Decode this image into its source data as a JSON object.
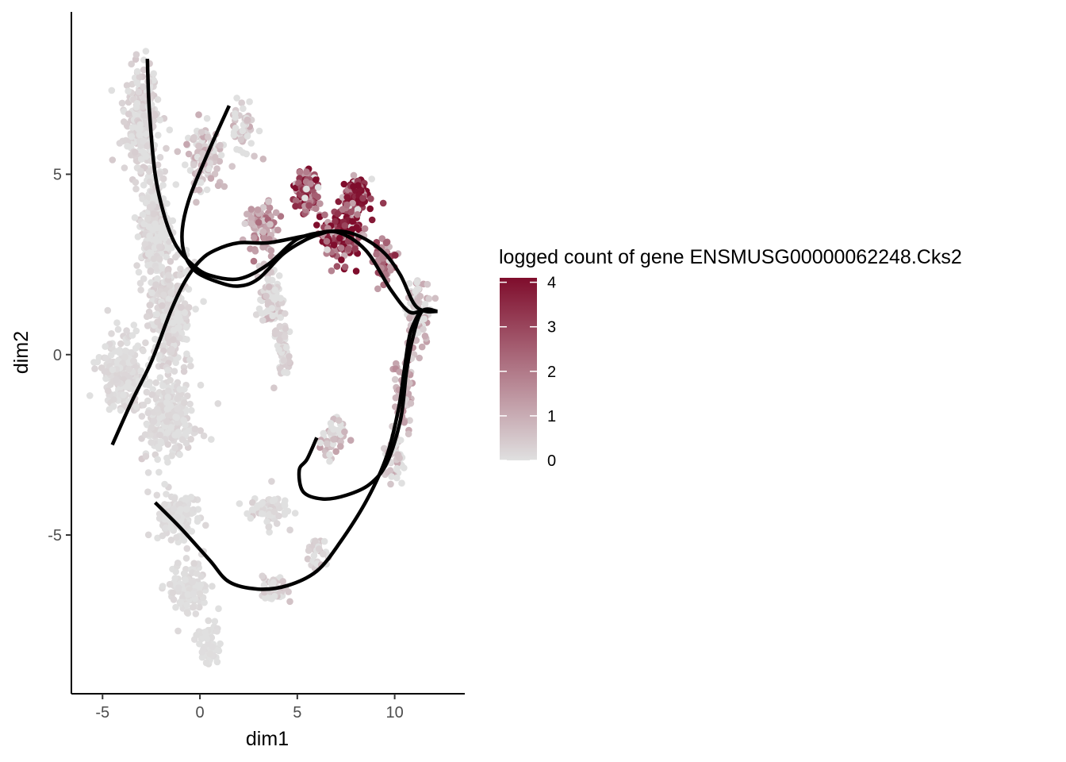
{
  "chart_data": {
    "type": "scatter",
    "title": "",
    "xlabel": "dim1",
    "ylabel": "dim2",
    "xlim": [
      -6.6,
      13.6
    ],
    "ylim": [
      -9.4,
      9.5
    ],
    "x_ticks": [
      -5,
      0,
      5,
      10
    ],
    "y_ticks": [
      -5,
      0,
      5
    ],
    "x_tick_labels": [
      "-5",
      "0",
      "5",
      "10"
    ],
    "y_tick_labels": [
      "-5",
      "0",
      "5"
    ],
    "grid": false,
    "color_scale": {
      "title": "logged count of gene ENSMUSG00000062248.Cks2",
      "min": 0,
      "max": 4.1,
      "ticks": [
        0,
        1,
        2,
        3,
        4
      ],
      "tick_labels": [
        "0",
        "1",
        "2",
        "3",
        "4"
      ],
      "low_color": "#e0e0e0",
      "high_color": "#7f0d2c",
      "legend_position": "right"
    },
    "point_regions": [
      {
        "center": [
          -3.0,
          6.5
        ],
        "spread": [
          0.8,
          1.3
        ],
        "n": 260,
        "expr": 0.25
      },
      {
        "center": [
          -2.3,
          3.5
        ],
        "spread": [
          0.8,
          1.5
        ],
        "n": 260,
        "expr": 0.2
      },
      {
        "center": [
          -1.5,
          1.0
        ],
        "spread": [
          0.9,
          1.5
        ],
        "n": 300,
        "expr": 0.2
      },
      {
        "center": [
          -4.0,
          -0.5
        ],
        "spread": [
          1.0,
          1.0
        ],
        "n": 220,
        "expr": 0.15
      },
      {
        "center": [
          -1.6,
          -1.8
        ],
        "spread": [
          1.2,
          1.0
        ],
        "n": 260,
        "expr": 0.15
      },
      {
        "center": [
          0.2,
          5.5
        ],
        "spread": [
          0.8,
          0.9
        ],
        "n": 110,
        "expr": 0.6
      },
      {
        "center": [
          2.2,
          6.3
        ],
        "spread": [
          0.6,
          0.7
        ],
        "n": 50,
        "expr": 0.5
      },
      {
        "center": [
          3.2,
          3.5
        ],
        "spread": [
          0.7,
          0.7
        ],
        "n": 90,
        "expr": 1.3
      },
      {
        "center": [
          3.6,
          1.6
        ],
        "spread": [
          0.5,
          0.7
        ],
        "n": 80,
        "expr": 0.5
      },
      {
        "center": [
          4.3,
          0.3
        ],
        "spread": [
          0.4,
          0.8
        ],
        "n": 60,
        "expr": 0.3
      },
      {
        "center": [
          5.5,
          4.5
        ],
        "spread": [
          0.6,
          0.5
        ],
        "n": 110,
        "expr": 2.6
      },
      {
        "center": [
          8.0,
          4.4
        ],
        "spread": [
          0.6,
          0.4
        ],
        "n": 130,
        "expr": 3.3
      },
      {
        "center": [
          7.2,
          3.3
        ],
        "spread": [
          0.9,
          0.7
        ],
        "n": 150,
        "expr": 3.0
      },
      {
        "center": [
          9.5,
          2.6
        ],
        "spread": [
          0.5,
          0.6
        ],
        "n": 50,
        "expr": 1.9
      },
      {
        "center": [
          11.2,
          1.2
        ],
        "spread": [
          0.6,
          0.8
        ],
        "n": 90,
        "expr": 0.8
      },
      {
        "center": [
          10.5,
          -1.0
        ],
        "spread": [
          0.4,
          1.0
        ],
        "n": 70,
        "expr": 1.0
      },
      {
        "center": [
          10.0,
          -2.8
        ],
        "spread": [
          0.5,
          0.7
        ],
        "n": 50,
        "expr": 0.6
      },
      {
        "center": [
          6.8,
          -2.3
        ],
        "spread": [
          0.6,
          0.5
        ],
        "n": 50,
        "expr": 0.6
      },
      {
        "center": [
          -1.0,
          -4.5
        ],
        "spread": [
          0.9,
          0.6
        ],
        "n": 150,
        "expr": 0.1
      },
      {
        "center": [
          -0.6,
          -6.5
        ],
        "spread": [
          0.9,
          0.7
        ],
        "n": 120,
        "expr": 0.1
      },
      {
        "center": [
          0.4,
          -8.0
        ],
        "spread": [
          0.5,
          0.6
        ],
        "n": 60,
        "expr": 0.05
      },
      {
        "center": [
          3.5,
          -4.3
        ],
        "spread": [
          0.9,
          0.4
        ],
        "n": 80,
        "expr": 0.2
      },
      {
        "center": [
          3.7,
          -6.5
        ],
        "spread": [
          0.7,
          0.3
        ],
        "n": 60,
        "expr": 0.3
      },
      {
        "center": [
          6.0,
          -5.5
        ],
        "spread": [
          0.5,
          0.4
        ],
        "n": 30,
        "expr": 0.3
      }
    ],
    "trajectories": [
      {
        "points": [
          [
            -2.7,
            8.2
          ],
          [
            -2.6,
            6.8
          ],
          [
            -2.3,
            5.0
          ],
          [
            -1.8,
            3.8
          ],
          [
            -1.2,
            3.0
          ],
          [
            -0.4,
            2.5
          ],
          [
            0.5,
            2.2
          ],
          [
            2.0,
            2.1
          ],
          [
            3.5,
            2.5
          ],
          [
            5.0,
            3.2
          ],
          [
            6.5,
            3.4
          ],
          [
            7.5,
            3.4
          ],
          [
            8.5,
            3.2
          ],
          [
            9.5,
            2.8
          ],
          [
            10.3,
            2.2
          ],
          [
            11.0,
            1.4
          ],
          [
            11.6,
            1.2
          ],
          [
            12.2,
            1.2
          ]
        ]
      },
      {
        "points": [
          [
            1.5,
            6.9
          ],
          [
            0.5,
            5.7
          ],
          [
            -0.5,
            4.4
          ],
          [
            -0.9,
            3.5
          ],
          [
            -0.8,
            2.8
          ],
          [
            -0.2,
            2.3
          ],
          [
            1.0,
            2.0
          ],
          [
            2.0,
            1.9
          ],
          [
            3.0,
            2.1
          ],
          [
            4.3,
            2.8
          ],
          [
            5.5,
            3.2
          ],
          [
            6.5,
            3.4
          ]
        ]
      },
      {
        "points": [
          [
            -4.5,
            -2.5
          ],
          [
            -3.5,
            -1.3
          ],
          [
            -2.5,
            -0.2
          ],
          [
            -1.5,
            1.2
          ],
          [
            -0.8,
            2.0
          ],
          [
            0.0,
            2.6
          ],
          [
            0.8,
            2.9
          ],
          [
            2.0,
            3.1
          ],
          [
            3.5,
            3.1
          ],
          [
            5.5,
            3.3
          ],
          [
            7.0,
            3.4
          ],
          [
            8.5,
            2.9
          ],
          [
            9.8,
            1.8
          ],
          [
            10.7,
            1.2
          ],
          [
            11.3,
            1.2
          ]
        ]
      },
      {
        "points": [
          [
            12.2,
            1.2
          ],
          [
            11.4,
            1.2
          ],
          [
            10.9,
            0.4
          ],
          [
            10.6,
            -0.5
          ],
          [
            10.3,
            -1.8
          ],
          [
            9.6,
            -3.0
          ],
          [
            8.7,
            -3.6
          ],
          [
            7.5,
            -3.9
          ],
          [
            6.3,
            -4.0
          ],
          [
            5.3,
            -3.8
          ],
          [
            5.1,
            -3.2
          ],
          [
            5.5,
            -2.9
          ],
          [
            6.0,
            -2.3
          ]
        ]
      },
      {
        "points": [
          [
            11.3,
            1.2
          ],
          [
            10.8,
            0.6
          ],
          [
            10.5,
            -0.4
          ],
          [
            10.2,
            -1.5
          ],
          [
            9.6,
            -2.8
          ],
          [
            8.6,
            -4.0
          ],
          [
            7.2,
            -5.2
          ],
          [
            6.0,
            -6.0
          ],
          [
            4.5,
            -6.4
          ],
          [
            3.0,
            -6.5
          ],
          [
            1.5,
            -6.3
          ],
          [
            0.5,
            -5.7
          ],
          [
            -1.0,
            -4.8
          ],
          [
            -2.3,
            -4.1
          ]
        ]
      }
    ]
  }
}
